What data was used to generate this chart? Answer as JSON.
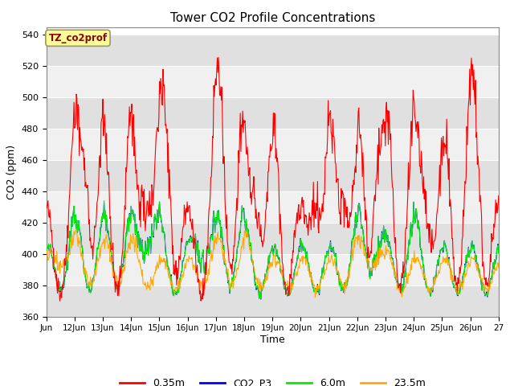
{
  "title": "Tower CO2 Profile Concentrations",
  "xlabel": "Time",
  "ylabel": "CO2 (ppm)",
  "ylim": [
    360,
    545
  ],
  "yticks": [
    360,
    380,
    400,
    420,
    440,
    460,
    480,
    500,
    520,
    540
  ],
  "fig_bg_color": "#ffffff",
  "plot_bg_color": "#ffffff",
  "legend_label": "TZ_co2prof",
  "legend_box_color": "#ffff99",
  "legend_box_edge": "#999966",
  "series": {
    "0.35m": {
      "color": "#ff0000",
      "lw": 0.8
    },
    "CO2_P3": {
      "color": "#0000ff",
      "lw": 0.8
    },
    "6.0m": {
      "color": "#00ee00",
      "lw": 0.8
    },
    "23.5m": {
      "color": "#ffaa00",
      "lw": 0.8
    }
  },
  "x_start_day": 11,
  "x_end_day": 27,
  "xtick_days": [
    11,
    12,
    13,
    14,
    15,
    16,
    17,
    18,
    19,
    20,
    21,
    22,
    23,
    24,
    25,
    26,
    27
  ],
  "xtick_labels": [
    "Jun",
    "12Jun",
    "13Jun",
    "14Jun",
    "15Jun",
    "16Jun",
    "17Jun",
    "18Jun",
    "19Jun",
    "20Jun",
    "21Jun",
    "22Jun",
    "23Jun",
    "24Jun",
    "25Jun",
    "26Jun",
    "27"
  ],
  "band_color_dark": "#e0e0e0",
  "band_color_light": "#f0f0f0",
  "base_co2": 375,
  "seed": 42
}
